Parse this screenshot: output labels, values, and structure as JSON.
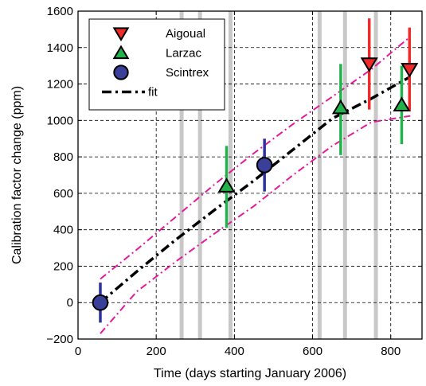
{
  "chart_data": {
    "type": "scatter",
    "title": "",
    "xlabel": "Time (days starting January 2006)",
    "ylabel": "Calibration factor change (ppm)",
    "xlim": [
      0,
      880
    ],
    "ylim": [
      -200,
      1600
    ],
    "xticks": [
      0,
      200,
      400,
      600,
      800
    ],
    "yticks": [
      -200,
      0,
      200,
      400,
      600,
      800,
      1000,
      1200,
      1400,
      1600
    ],
    "ytick_labels": [
      "−200",
      "0",
      "200",
      "400",
      "600",
      "800",
      "1000",
      "1200",
      "1400",
      "1600"
    ],
    "grid": true,
    "legend_position": "top-left",
    "vertical_bands": {
      "color": "#c8c8c8",
      "x": [
        265,
        312,
        390,
        618,
        683,
        762
      ]
    },
    "series": [
      {
        "name": "Aigoual",
        "marker": "triangle-down",
        "color": "#ee2b2b",
        "errorbar_color": "#ee2b2b",
        "points": [
          {
            "x": 745,
            "y": 1310,
            "ylo": 1060,
            "yhi": 1560
          },
          {
            "x": 848,
            "y": 1280,
            "ylo": 1050,
            "yhi": 1510
          }
        ]
      },
      {
        "name": "Larzac",
        "marker": "triangle-up",
        "color": "#22b24c",
        "errorbar_color": "#22b24c",
        "points": [
          {
            "x": 380,
            "y": 640,
            "ylo": 410,
            "yhi": 860
          },
          {
            "x": 672,
            "y": 1070,
            "ylo": 810,
            "yhi": 1310
          },
          {
            "x": 828,
            "y": 1085,
            "ylo": 870,
            "yhi": 1300
          }
        ]
      },
      {
        "name": "Scintrex",
        "marker": "circle",
        "color": "#3a3f9a",
        "errorbar_color": "#2e3399",
        "points": [
          {
            "x": 57,
            "y": 0,
            "ylo": -110,
            "yhi": 110
          },
          {
            "x": 477,
            "y": 755,
            "ylo": 610,
            "yhi": 900
          }
        ]
      },
      {
        "name": "fit",
        "style": "dash-dot",
        "color": "#000000",
        "points": [
          {
            "x": 57,
            "y": 0
          },
          {
            "x": 150,
            "y": 170
          },
          {
            "x": 250,
            "y": 345
          },
          {
            "x": 350,
            "y": 510
          },
          {
            "x": 450,
            "y": 670
          },
          {
            "x": 550,
            "y": 840
          },
          {
            "x": 650,
            "y": 1010
          },
          {
            "x": 750,
            "y": 1120
          },
          {
            "x": 850,
            "y": 1240
          }
        ]
      }
    ],
    "confidence_band": {
      "color": "#e6199b",
      "upper": [
        {
          "x": 57,
          "y": 130
        },
        {
          "x": 150,
          "y": 290
        },
        {
          "x": 250,
          "y": 470
        },
        {
          "x": 350,
          "y": 650
        },
        {
          "x": 450,
          "y": 820
        },
        {
          "x": 550,
          "y": 980
        },
        {
          "x": 650,
          "y": 1130
        },
        {
          "x": 750,
          "y": 1280
        },
        {
          "x": 850,
          "y": 1460
        }
      ],
      "lower": [
        {
          "x": 57,
          "y": -170
        },
        {
          "x": 150,
          "y": 60
        },
        {
          "x": 250,
          "y": 225
        },
        {
          "x": 350,
          "y": 380
        },
        {
          "x": 450,
          "y": 530
        },
        {
          "x": 550,
          "y": 700
        },
        {
          "x": 650,
          "y": 860
        },
        {
          "x": 750,
          "y": 990
        },
        {
          "x": 850,
          "y": 1025
        }
      ]
    }
  }
}
